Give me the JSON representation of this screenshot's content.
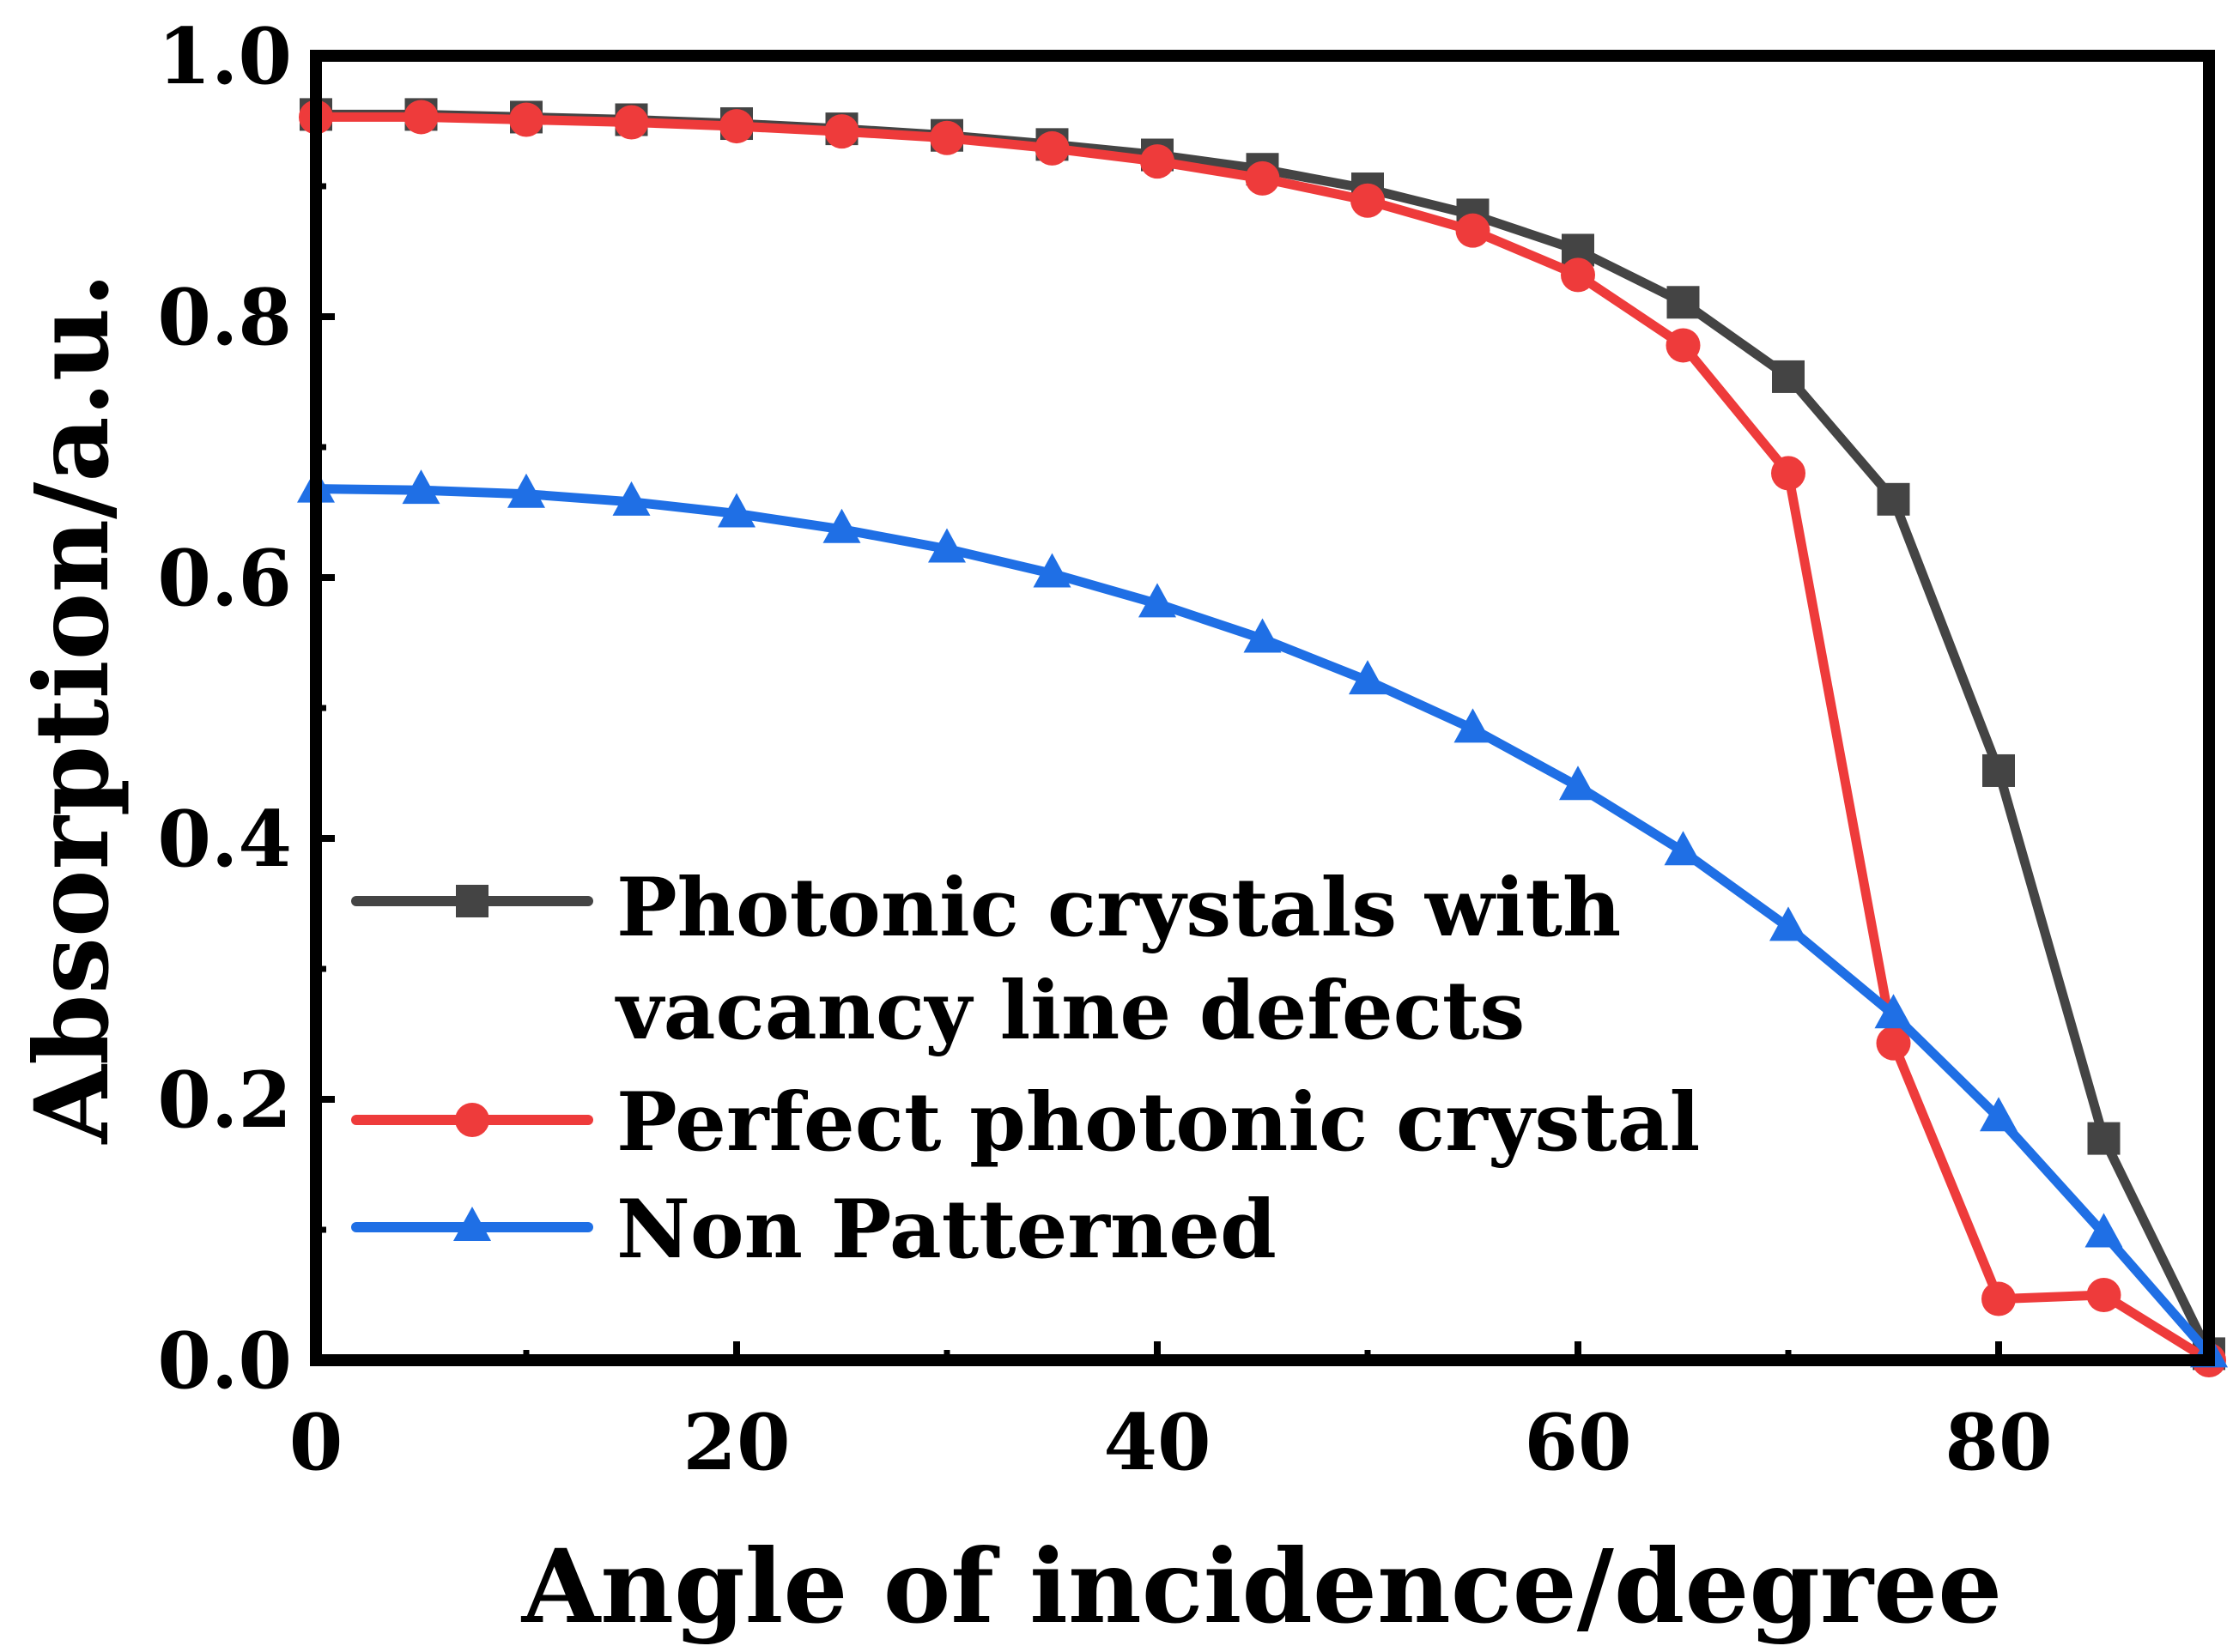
{
  "chart_data": {
    "type": "line",
    "title": "",
    "xlabel": "Angle of incidence/degree",
    "ylabel": "Absorption/a.u.",
    "xlim": [
      0,
      90
    ],
    "ylim": [
      0.0,
      1.0
    ],
    "grid": false,
    "legend_position": "bottom-left",
    "x_ticks": [
      0,
      20,
      40,
      60,
      80
    ],
    "x_tick_labels": [
      "0",
      "20",
      "40",
      "60",
      "80"
    ],
    "y_ticks": [
      0.0,
      0.2,
      0.4,
      0.6,
      0.8,
      1.0
    ],
    "y_tick_labels": [
      "0.0",
      "0.2",
      "0.4",
      "0.6",
      "0.8",
      "1.0"
    ],
    "x": [
      0,
      5,
      10,
      15,
      20,
      25,
      30,
      35,
      40,
      45,
      50,
      55,
      60,
      65,
      70,
      75,
      80,
      85,
      90
    ],
    "series": [
      {
        "name": "Photonic crystals with vacancy line defects",
        "legend_lines": [
          "Photonic crystals with",
          "vacancy line defects"
        ],
        "color": "#444444",
        "marker": "square",
        "values": [
          0.955,
          0.955,
          0.953,
          0.951,
          0.948,
          0.944,
          0.939,
          0.932,
          0.924,
          0.913,
          0.898,
          0.878,
          0.851,
          0.811,
          0.754,
          0.66,
          0.452,
          0.17,
          0.005
        ]
      },
      {
        "name": "Perfect photonic crystal",
        "legend_lines": [
          "Perfect photonic crystal"
        ],
        "color": "#ee3b3b",
        "marker": "circle",
        "values": [
          0.953,
          0.953,
          0.951,
          0.949,
          0.946,
          0.942,
          0.937,
          0.929,
          0.919,
          0.906,
          0.889,
          0.866,
          0.832,
          0.778,
          0.68,
          0.243,
          0.047,
          0.05,
          0.0
        ]
      },
      {
        "name": "Non Patterned",
        "legend_lines": [
          "Non Patterned"
        ],
        "color": "#1f6fe5",
        "marker": "triangle",
        "values": [
          0.668,
          0.667,
          0.664,
          0.658,
          0.649,
          0.637,
          0.622,
          0.603,
          0.58,
          0.553,
          0.521,
          0.484,
          0.44,
          0.39,
          0.332,
          0.265,
          0.186,
          0.097,
          0.005
        ]
      }
    ]
  }
}
